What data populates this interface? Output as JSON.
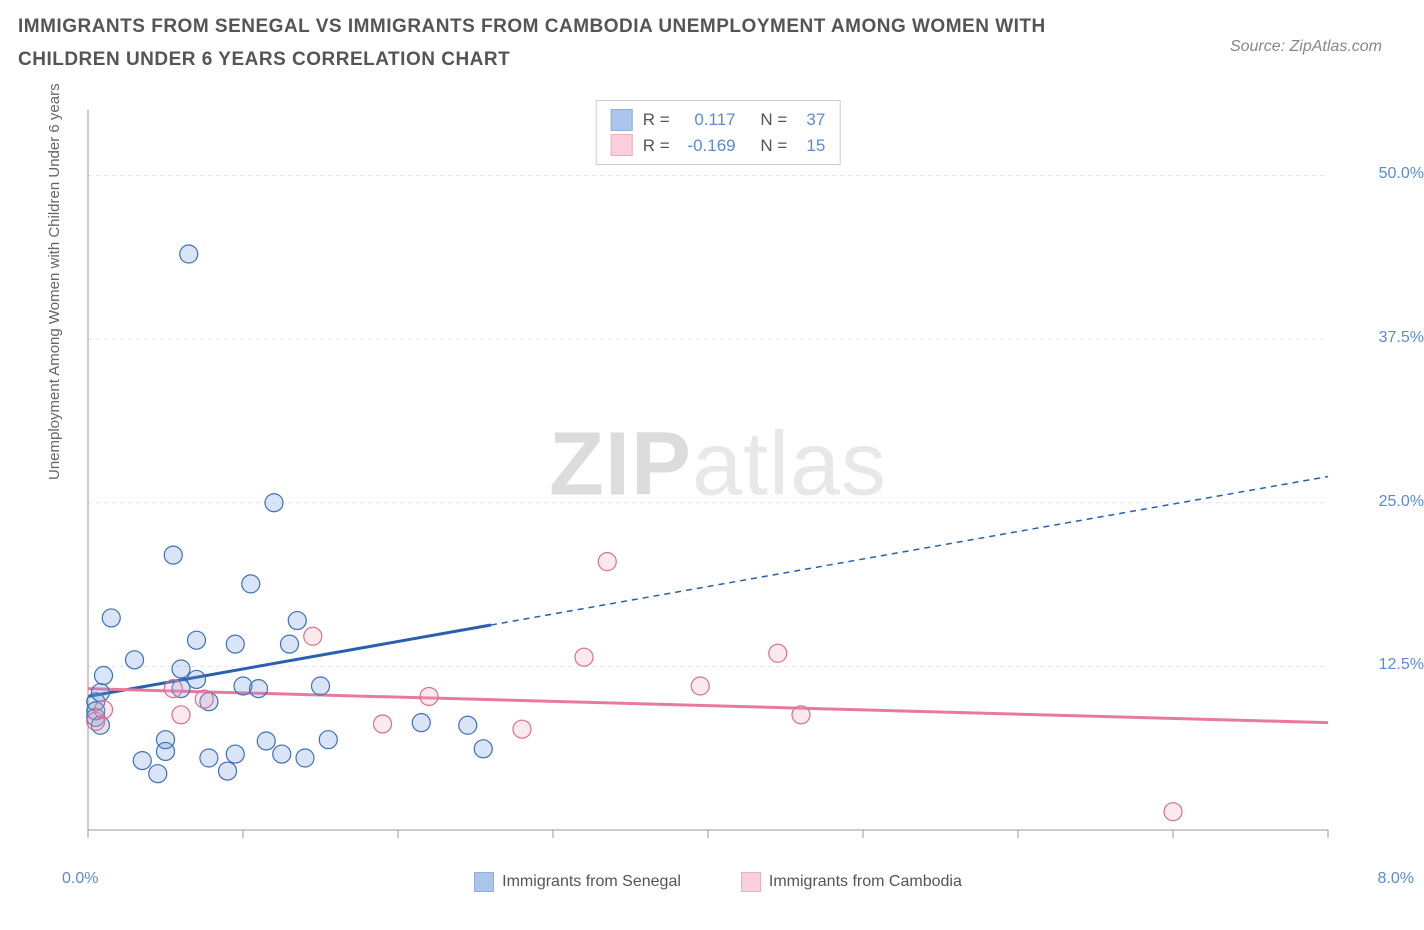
{
  "title": "IMMIGRANTS FROM SENEGAL VS IMMIGRANTS FROM CAMBODIA UNEMPLOYMENT AMONG WOMEN WITH CHILDREN UNDER 6 YEARS CORRELATION CHART",
  "source": "Source: ZipAtlas.com",
  "y_axis_label": "Unemployment Among Women with Children Under 6 years",
  "watermark_a": "ZIP",
  "watermark_b": "atlas",
  "chart": {
    "type": "scatter",
    "xlim": [
      0,
      8
    ],
    "ylim": [
      0,
      55
    ],
    "x_ticks": [
      0,
      1,
      2,
      3,
      4,
      5,
      6,
      7,
      8
    ],
    "y_ticks": [
      12.5,
      25.0,
      37.5,
      50.0
    ],
    "y_tick_labels": [
      "12.5%",
      "25.0%",
      "37.5%",
      "50.0%"
    ],
    "x_corner_left": "0.0%",
    "x_corner_right": "8.0%",
    "background_color": "#ffffff",
    "grid_color": "#e4e4e4",
    "axis_color": "#999999",
    "marker_radius": 9,
    "marker_stroke_width": 1.2,
    "marker_fill_opacity": 0.25,
    "trend_width": 3,
    "series": [
      {
        "key": "senegal",
        "label": "Immigrants from Senegal",
        "color": "#6699dd",
        "stroke": "#3f6fb5",
        "trend_color": "#2a5fb0",
        "trend_x1": 0,
        "trend_y1": 10.2,
        "trend_x2": 8,
        "trend_y2": 27.0,
        "trend_solid_until_x": 2.6,
        "R_label": "R =",
        "R_value": "0.117",
        "N_label": "N =",
        "N_value": "37",
        "points": [
          [
            0.05,
            9.8
          ],
          [
            0.05,
            8.6
          ],
          [
            0.05,
            9.1
          ],
          [
            0.08,
            10.5
          ],
          [
            0.08,
            8.0
          ],
          [
            0.1,
            11.8
          ],
          [
            0.15,
            16.2
          ],
          [
            0.3,
            13.0
          ],
          [
            0.35,
            5.3
          ],
          [
            0.45,
            4.3
          ],
          [
            0.5,
            6.9
          ],
          [
            0.5,
            6.0
          ],
          [
            0.55,
            21.0
          ],
          [
            0.6,
            12.3
          ],
          [
            0.6,
            10.8
          ],
          [
            0.65,
            44.0
          ],
          [
            0.7,
            14.5
          ],
          [
            0.7,
            11.5
          ],
          [
            0.78,
            9.8
          ],
          [
            0.78,
            5.5
          ],
          [
            0.9,
            4.5
          ],
          [
            0.95,
            5.8
          ],
          [
            0.95,
            14.2
          ],
          [
            1.0,
            11.0
          ],
          [
            1.05,
            18.8
          ],
          [
            1.1,
            10.8
          ],
          [
            1.15,
            6.8
          ],
          [
            1.2,
            25.0
          ],
          [
            1.25,
            5.8
          ],
          [
            1.3,
            14.2
          ],
          [
            1.35,
            16.0
          ],
          [
            1.4,
            5.5
          ],
          [
            1.5,
            11.0
          ],
          [
            1.55,
            6.9
          ],
          [
            2.15,
            8.2
          ],
          [
            2.45,
            8.0
          ],
          [
            2.55,
            6.2
          ]
        ]
      },
      {
        "key": "cambodia",
        "label": "Immigrants from Cambodia",
        "color": "#f4a9bd",
        "stroke": "#d96f93",
        "trend_color": "#e87aa0",
        "trend_x1": 0,
        "trend_y1": 10.8,
        "trend_x2": 8,
        "trend_y2": 8.2,
        "trend_solid_until_x": 8,
        "R_label": "R =",
        "R_value": "-0.169",
        "N_label": "N =",
        "N_value": "15",
        "points": [
          [
            0.05,
            8.3
          ],
          [
            0.1,
            9.2
          ],
          [
            0.55,
            10.8
          ],
          [
            0.6,
            8.8
          ],
          [
            0.75,
            10.0
          ],
          [
            1.45,
            14.8
          ],
          [
            1.9,
            8.1
          ],
          [
            2.2,
            10.2
          ],
          [
            2.8,
            7.7
          ],
          [
            3.2,
            13.2
          ],
          [
            3.35,
            20.5
          ],
          [
            3.95,
            11.0
          ],
          [
            4.45,
            13.5
          ],
          [
            4.6,
            8.8
          ],
          [
            7.0,
            1.4
          ]
        ]
      }
    ]
  }
}
